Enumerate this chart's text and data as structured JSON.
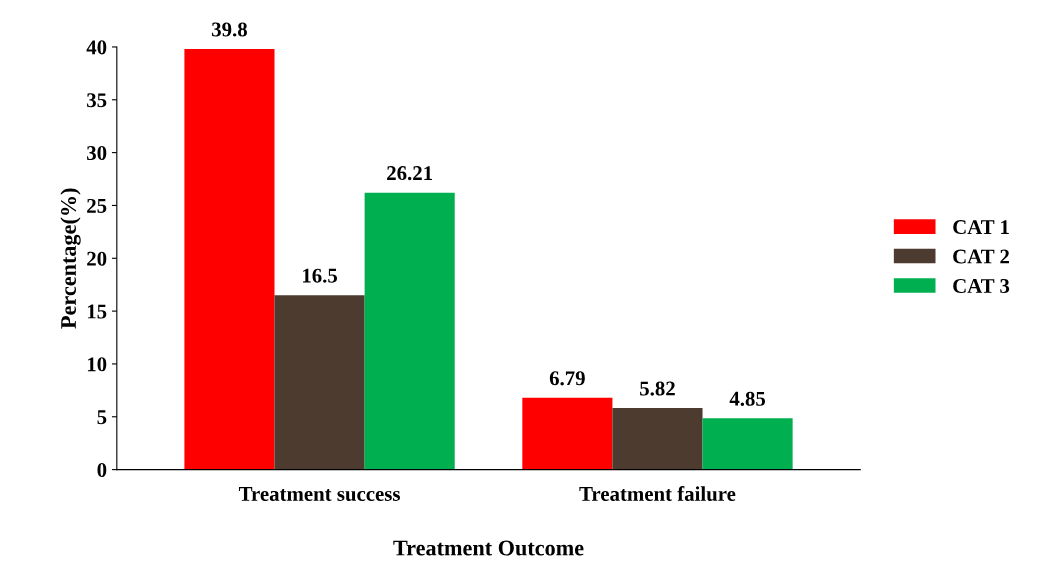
{
  "chart_data": {
    "type": "bar",
    "xlabel": "Treatment Outcome",
    "ylabel": "Percentage(%)",
    "categories": [
      "Treatment success",
      "Treatment failure"
    ],
    "series": [
      {
        "name": "CAT 1",
        "color": "#ff0000",
        "values": [
          39.8,
          6.79
        ]
      },
      {
        "name": "CAT 2",
        "color": "#4d3b2f",
        "values": [
          16.5,
          5.82
        ]
      },
      {
        "name": "CAT 3",
        "color": "#00b050",
        "values": [
          26.21,
          4.85
        ]
      }
    ],
    "ylim": [
      0,
      40
    ],
    "yticks": [
      0,
      5,
      10,
      15,
      20,
      25,
      30,
      35,
      40
    ],
    "data_labels": true,
    "grid": false,
    "legend": "right"
  }
}
